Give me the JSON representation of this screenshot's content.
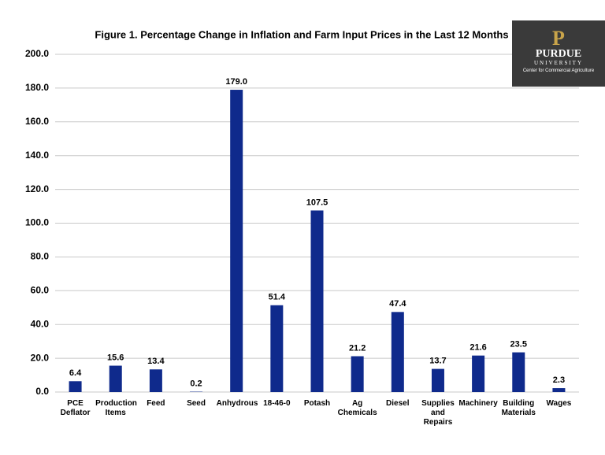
{
  "chart_data": {
    "type": "bar",
    "title": "Figure 1.  Percentage Change in Inflation and Farm Input Prices in the Last 12 Months",
    "categories": [
      "PCE Deflator",
      "Production Items",
      "Feed",
      "Seed",
      "Anhydrous",
      "18-46-0",
      "Potash",
      "Ag Chemicals",
      "Diesel",
      "Supplies and Repairs",
      "Machinery",
      "Building Materials",
      "Wages"
    ],
    "values": [
      6.4,
      15.6,
      13.4,
      0.2,
      179.0,
      51.4,
      107.5,
      21.2,
      47.4,
      13.7,
      21.6,
      23.5,
      2.3
    ],
    "value_labels": [
      "6.4",
      "15.6",
      "13.4",
      "0.2",
      "179.0",
      "51.4",
      "107.5",
      "21.2",
      "47.4",
      "13.7",
      "21.6",
      "23.5",
      "2.3"
    ],
    "color": "#0f2a8c",
    "ylim": [
      0,
      200
    ],
    "yticks": [
      {
        "value": 0,
        "label": "0.0"
      },
      {
        "value": 20,
        "label": "20.0"
      },
      {
        "value": 40,
        "label": "40.0"
      },
      {
        "value": 60,
        "label": "60.0"
      },
      {
        "value": 80,
        "label": "80.0"
      },
      {
        "value": 100,
        "label": "100.0"
      },
      {
        "value": 120,
        "label": "120.0"
      },
      {
        "value": 140,
        "label": "140.0"
      },
      {
        "value": 160,
        "label": "160.0"
      },
      {
        "value": 180,
        "label": "180.0"
      },
      {
        "value": 200,
        "label": "200.0"
      }
    ],
    "grid": true
  },
  "logo": {
    "name": "PURDUE",
    "subname": "UNIVERSITY",
    "caption": "Center for Commercial Agriculture"
  }
}
